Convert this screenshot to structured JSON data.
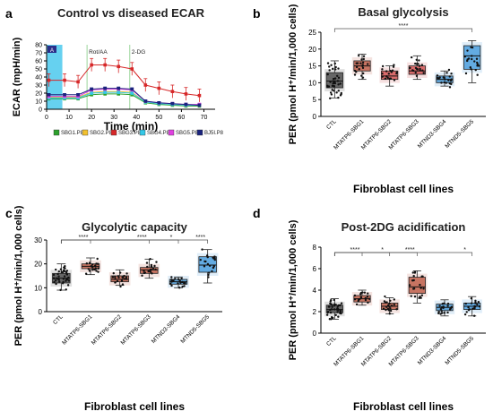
{
  "chart_data": [
    {
      "panel": "a",
      "type": "line",
      "title": "Control vs diseased ECAR",
      "xlabel": "Time (min)",
      "ylabel": "ECAR (mpH/min)",
      "xlim": [
        0,
        75
      ],
      "ylim": [
        0,
        80
      ],
      "xticks": [
        0,
        10,
        20,
        30,
        40,
        50,
        60,
        70
      ],
      "yticks": [
        0,
        10,
        20,
        30,
        40,
        50,
        60,
        70,
        80
      ],
      "shaded_color": "#55ccee",
      "annotations": [
        {
          "text": "A",
          "x": 2
        },
        {
          "text": "Rot/AA",
          "x": 18
        },
        {
          "text": "2-DG",
          "x": 37
        }
      ],
      "x": [
        1,
        8,
        14,
        20,
        26,
        32,
        38,
        44,
        50,
        56,
        62,
        68
      ],
      "series": [
        {
          "name": "SBG1.P8",
          "color": "#2ca02c",
          "values": [
            13,
            13,
            13,
            18,
            19,
            19,
            18,
            8,
            6,
            5,
            4,
            4
          ]
        },
        {
          "name": "SBG2.P8",
          "color": "#f2c12e",
          "values": [
            15,
            15,
            15,
            21,
            22,
            22,
            21,
            9,
            7,
            6,
            5,
            5
          ]
        },
        {
          "name": "SBG3.P8",
          "color": "#d62728",
          "values": [
            36,
            36,
            34,
            55,
            55,
            53,
            50,
            30,
            26,
            22,
            19,
            17
          ]
        },
        {
          "name": "SBG4.P8",
          "color": "#35c9e8",
          "values": [
            14,
            14,
            14,
            20,
            21,
            21,
            20,
            9,
            7,
            6,
            5,
            5
          ]
        },
        {
          "name": "SBG5.P8",
          "color": "#e040e0",
          "values": [
            16,
            16,
            16,
            24,
            25,
            25,
            24,
            10,
            8,
            7,
            6,
            6
          ]
        },
        {
          "name": "BJ5I.P8",
          "color": "#1a237e",
          "values": [
            18,
            18,
            18,
            25,
            26,
            26,
            25,
            10,
            8,
            7,
            6,
            5
          ]
        }
      ]
    },
    {
      "panel": "b",
      "type": "box",
      "title": "Basal glycolysis",
      "ylabel": "PER (pmol H⁺/min/1,000 cells)",
      "xlabel": "Fibroblast cell lines",
      "ylim": [
        0,
        25
      ],
      "yticks": [
        0,
        5,
        10,
        15,
        20,
        25
      ],
      "categories": [
        "CTL",
        "MTATP6-SBG1",
        "MTATP6-SBG2",
        "MTATP6-SBG3",
        "MTND3-SBG4",
        "MTND5-SBG5"
      ],
      "colors": [
        "#333333",
        "#b5452e",
        "#cc3a3a",
        "#cc3a3a",
        "#2d86c8",
        "#2f8fd8"
      ],
      "boxes": [
        {
          "min": 5.5,
          "q1": 8.5,
          "median": 10.5,
          "q3": 13,
          "max": 16.5,
          "n": 40
        },
        {
          "min": 11,
          "q1": 13.5,
          "median": 15,
          "q3": 16.5,
          "max": 18.5,
          "n": 20
        },
        {
          "min": 9,
          "q1": 11,
          "median": 12,
          "q3": 13.5,
          "max": 15,
          "n": 20
        },
        {
          "min": 11,
          "q1": 12.5,
          "median": 13.5,
          "q3": 15,
          "max": 18,
          "n": 20
        },
        {
          "min": 9,
          "q1": 10,
          "median": 11,
          "q3": 12,
          "max": 13.5,
          "n": 20
        },
        {
          "min": 10,
          "q1": 14,
          "median": 18,
          "q3": 21,
          "max": 22.5,
          "n": 20
        }
      ],
      "significance": [
        {
          "from": 0,
          "to": 5,
          "label": "****"
        }
      ]
    },
    {
      "panel": "c",
      "type": "box",
      "title": "Glycolytic capacity",
      "ylabel": "PER (pmol H⁺/min/1,000 cells)",
      "xlabel": "Fibroblast cell lines",
      "ylim": [
        0,
        30
      ],
      "yticks": [
        0,
        10,
        20,
        30
      ],
      "categories": [
        "CTL",
        "MTATP6-SBG1",
        "MTATP6-SBG2",
        "MTATP6-SBG3",
        "MTND3-SBG4",
        "MTND5-SBG5"
      ],
      "colors": [
        "#333333",
        "#b5452e",
        "#b5452e",
        "#b5452e",
        "#2d86c8",
        "#2f8fd8"
      ],
      "boxes": [
        {
          "min": 9,
          "q1": 12,
          "median": 14,
          "q3": 16,
          "max": 20,
          "n": 40
        },
        {
          "min": 15.5,
          "q1": 18,
          "median": 19,
          "q3": 20,
          "max": 22.5,
          "n": 20
        },
        {
          "min": 11,
          "q1": 12.5,
          "median": 13.5,
          "q3": 15,
          "max": 17.5,
          "n": 20
        },
        {
          "min": 14,
          "q1": 16,
          "median": 17.5,
          "q3": 18.5,
          "max": 22,
          "n": 20
        },
        {
          "min": 10,
          "q1": 11.5,
          "median": 12.5,
          "q3": 13.5,
          "max": 14.5,
          "n": 20
        },
        {
          "min": 12,
          "q1": 16.5,
          "median": 19.5,
          "q3": 23,
          "max": 26,
          "n": 20
        }
      ],
      "significance": [
        {
          "from": 0,
          "to": 3,
          "label": "****"
        },
        {
          "from": 0,
          "to": 1,
          "label": "****"
        },
        {
          "from": 0,
          "to": 4,
          "label": "*"
        },
        {
          "from": 0,
          "to": 5,
          "label": "****"
        }
      ]
    },
    {
      "panel": "d",
      "type": "box",
      "title": "Post-2DG acidification",
      "ylabel": "PER (pmol H⁺/min/1,000 cells)",
      "xlabel": "Fibroblast cell lines",
      "ylim": [
        0,
        8
      ],
      "yticks": [
        0,
        2,
        4,
        6,
        8
      ],
      "categories": [
        "CTL",
        "MTATP6-SBG1",
        "MTATP6-SBG2",
        "MTATP6-SBG3",
        "MTND3-SBG4",
        "MTND5-SBG5"
      ],
      "colors": [
        "#333333",
        "#b5452e",
        "#b5452e",
        "#b5452e",
        "#2d86c8",
        "#2f8fd8"
      ],
      "boxes": [
        {
          "min": 1.3,
          "q1": 1.9,
          "median": 2.2,
          "q3": 2.6,
          "max": 3.2,
          "n": 40
        },
        {
          "min": 2.6,
          "q1": 2.9,
          "median": 3.2,
          "q3": 3.5,
          "max": 4.0,
          "n": 20
        },
        {
          "min": 1.8,
          "q1": 2.2,
          "median": 2.5,
          "q3": 2.8,
          "max": 3.3,
          "n": 20
        },
        {
          "min": 2.8,
          "q1": 3.7,
          "median": 4.3,
          "q3": 5.2,
          "max": 5.8,
          "n": 20
        },
        {
          "min": 1.6,
          "q1": 2.1,
          "median": 2.4,
          "q3": 2.7,
          "max": 3.1,
          "n": 20
        },
        {
          "min": 1.6,
          "q1": 2.2,
          "median": 2.5,
          "q3": 2.8,
          "max": 3.4,
          "n": 20
        }
      ],
      "significance": [
        {
          "from": 0,
          "to": 3,
          "label": "****"
        },
        {
          "from": 0,
          "to": 1,
          "label": "****"
        },
        {
          "from": 0,
          "to": 2,
          "label": "*"
        },
        {
          "from": 0,
          "to": 5,
          "label": "*"
        }
      ]
    }
  ],
  "panels": {
    "a": {
      "letter": "a"
    },
    "b": {
      "letter": "b"
    },
    "c": {
      "letter": "c"
    },
    "d": {
      "letter": "d"
    }
  }
}
